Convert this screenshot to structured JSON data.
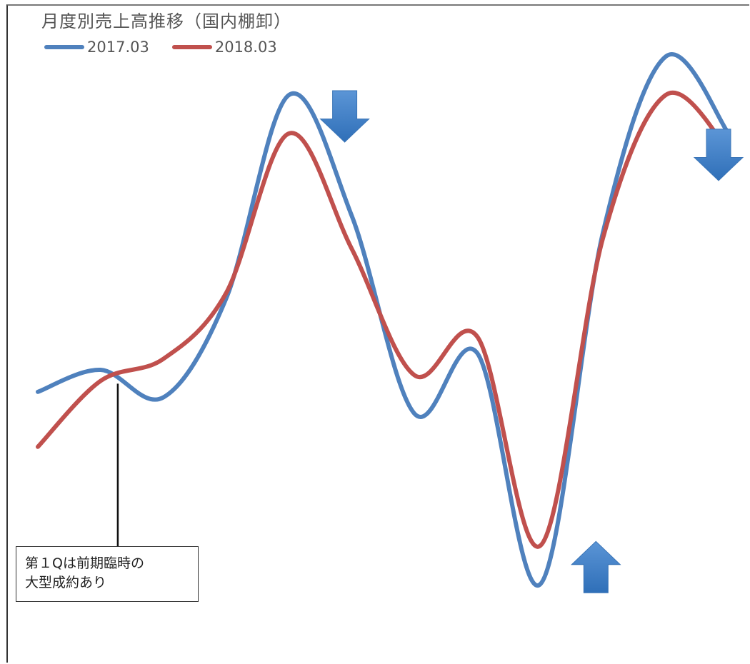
{
  "chart_data": {
    "type": "line",
    "title": "月度別売上高推移（国内棚卸）",
    "legend_position": "top-left",
    "grid": false,
    "xlabel": "",
    "ylabel": "",
    "x": [
      1,
      2,
      3,
      4,
      5,
      6,
      7,
      8,
      9,
      10,
      11,
      12
    ],
    "ylim": [
      0,
      100
    ],
    "series": [
      {
        "name": "2017.03",
        "color": "#4f81bd",
        "values": [
          36,
          40,
          35,
          53,
          90,
          68,
          32,
          43,
          1,
          65,
          97,
          83
        ]
      },
      {
        "name": "2018.03",
        "color": "#c0504d",
        "values": [
          26,
          38,
          42,
          54,
          83,
          62,
          39,
          46,
          8,
          64,
          90,
          80
        ]
      }
    ],
    "annotations": [
      {
        "text_lines": [
          "第１Qは前期臨時の",
          "大型成約あり"
        ],
        "x": 2
      }
    ],
    "markers": [
      {
        "name": "down-arrow",
        "direction": "down",
        "near_x": 5,
        "color": "#4a86c8"
      },
      {
        "name": "up-arrow",
        "direction": "up",
        "near_x": 9,
        "color": "#4a86c8"
      },
      {
        "name": "down-arrow",
        "direction": "down",
        "near_x": 12,
        "color": "#4a86c8"
      }
    ]
  }
}
